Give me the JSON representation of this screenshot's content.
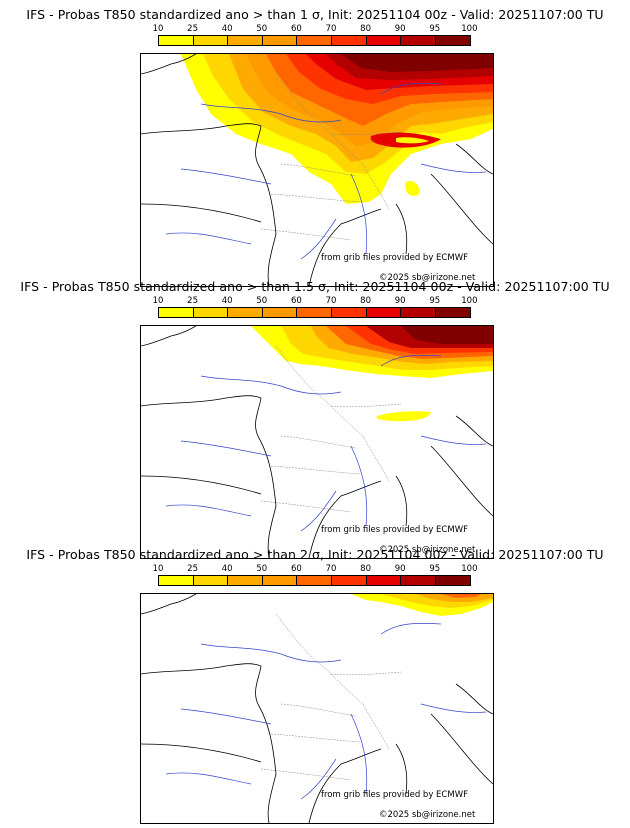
{
  "legend": {
    "ticks": [
      "10",
      "25",
      "40",
      "50",
      "60",
      "70",
      "80",
      "90",
      "95",
      "100"
    ],
    "colors": [
      "#ffff00",
      "#ffd700",
      "#ffaa00",
      "#ff9900",
      "#ff6600",
      "#ff3300",
      "#e60000",
      "#b30000",
      "#800000"
    ]
  },
  "panels": [
    {
      "title": "IFS - Probas T850  standardized ano > than 1 σ, Init: 20251104 00z - Valid: 20251107:00 TU",
      "credit_source": "from grib files provided by ECMWF",
      "credit_copyright": "©2025 sb@irizone.net",
      "coverage": "wide"
    },
    {
      "title": "IFS - Probas T850  standardized ano > than 1.5 σ, Init: 20251104 00z - Valid: 20251107:00 TU",
      "credit_source": "from grib files provided by ECMWF",
      "credit_copyright": "©2025 sb@irizone.net",
      "coverage": "medium"
    },
    {
      "title": "IFS - Probas T850  standardized ano > than 2 σ, Init: 20251104 00z - Valid: 20251107:00 TU",
      "credit_source": "from grib files provided by ECMWF",
      "credit_copyright": "©2025 sb@irizone.net",
      "coverage": "small"
    }
  ]
}
